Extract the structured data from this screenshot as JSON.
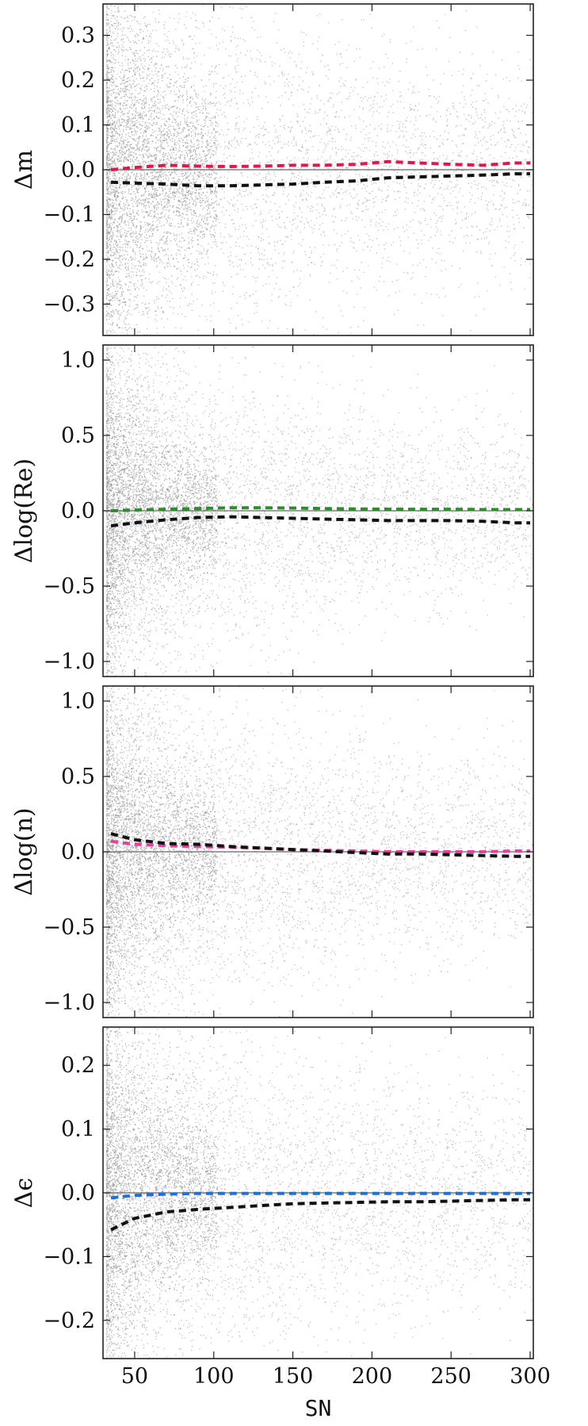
{
  "chart_data": [
    {
      "type": "scatter",
      "ylabel": "Δm",
      "xlim": [
        30,
        302
      ],
      "ylim": [
        -0.37,
        0.37
      ],
      "yticks": [
        {
          "value": 0.3,
          "label": "0.3"
        },
        {
          "value": 0.2,
          "label": "0.2"
        },
        {
          "value": 0.1,
          "label": "0.1"
        },
        {
          "value": 0.0,
          "label": "0.0"
        },
        {
          "value": -0.1,
          "label": "−0.1"
        },
        {
          "value": -0.2,
          "label": "−0.2"
        },
        {
          "value": -0.3,
          "label": "−0.3"
        }
      ],
      "spread": [
        0.35,
        0.09
      ],
      "series": [
        {
          "color": "#e0184a",
          "x": [
            35,
            50,
            70,
            90,
            110,
            130,
            150,
            170,
            190,
            210,
            230,
            250,
            270,
            290,
            300
          ],
          "y": [
            0.0,
            0.005,
            0.01,
            0.008,
            0.007,
            0.008,
            0.01,
            0.01,
            0.012,
            0.018,
            0.015,
            0.012,
            0.01,
            0.015,
            0.015
          ]
        },
        {
          "color": "#111111",
          "x": [
            35,
            50,
            70,
            90,
            110,
            130,
            150,
            170,
            190,
            210,
            230,
            250,
            270,
            290,
            300
          ],
          "y": [
            -0.028,
            -0.03,
            -0.032,
            -0.036,
            -0.036,
            -0.034,
            -0.032,
            -0.028,
            -0.025,
            -0.018,
            -0.016,
            -0.014,
            -0.012,
            -0.009,
            -0.009
          ]
        }
      ]
    },
    {
      "type": "scatter",
      "ylabel": "Δlog(Re)",
      "xlim": [
        30,
        302
      ],
      "ylim": [
        -1.1,
        1.1
      ],
      "yticks": [
        {
          "value": 1.0,
          "label": "1.0"
        },
        {
          "value": 0.5,
          "label": "0.5"
        },
        {
          "value": 0.0,
          "label": "0.0"
        },
        {
          "value": -0.5,
          "label": "−0.5"
        },
        {
          "value": -1.0,
          "label": "−1.0"
        }
      ],
      "spread": [
        0.8,
        0.28
      ],
      "series": [
        {
          "color": "#2e8b2e",
          "x": [
            35,
            50,
            70,
            90,
            110,
            130,
            150,
            170,
            190,
            210,
            230,
            250,
            270,
            290,
            300
          ],
          "y": [
            0.0,
            0.005,
            0.01,
            0.015,
            0.02,
            0.02,
            0.018,
            0.015,
            0.012,
            0.01,
            0.01,
            0.01,
            0.008,
            0.008,
            0.008
          ]
        },
        {
          "color": "#111111",
          "x": [
            35,
            50,
            70,
            90,
            110,
            130,
            150,
            170,
            190,
            210,
            230,
            250,
            270,
            290,
            300
          ],
          "y": [
            -0.1,
            -0.08,
            -0.06,
            -0.045,
            -0.04,
            -0.045,
            -0.05,
            -0.055,
            -0.06,
            -0.065,
            -0.065,
            -0.065,
            -0.07,
            -0.08,
            -0.08
          ]
        }
      ]
    },
    {
      "type": "scatter",
      "ylabel": "Δlog(n)",
      "xlim": [
        30,
        302
      ],
      "ylim": [
        -1.1,
        1.1
      ],
      "yticks": [
        {
          "value": 1.0,
          "label": "1.0"
        },
        {
          "value": 0.5,
          "label": "0.5"
        },
        {
          "value": 0.0,
          "label": "0.0"
        },
        {
          "value": -0.5,
          "label": "−0.5"
        },
        {
          "value": -1.0,
          "label": "−1.0"
        }
      ],
      "spread": [
        0.9,
        0.3
      ],
      "series": [
        {
          "color": "#e8409a",
          "x": [
            35,
            50,
            70,
            90,
            110,
            130,
            150,
            170,
            190,
            210,
            230,
            250,
            270,
            290,
            300
          ],
          "y": [
            0.07,
            0.05,
            0.04,
            0.035,
            0.03,
            0.025,
            0.015,
            0.01,
            0.005,
            0.0,
            0.0,
            0.0,
            0.0,
            0.005,
            0.005
          ]
        },
        {
          "color": "#111111",
          "x": [
            35,
            50,
            70,
            90,
            110,
            130,
            150,
            170,
            190,
            210,
            230,
            250,
            270,
            290,
            300
          ],
          "y": [
            0.12,
            0.08,
            0.055,
            0.05,
            0.035,
            0.025,
            0.015,
            0.005,
            -0.005,
            -0.015,
            -0.015,
            -0.02,
            -0.025,
            -0.03,
            -0.03
          ]
        }
      ]
    },
    {
      "type": "scatter",
      "ylabel": "Δϵ",
      "xlim": [
        30,
        302
      ],
      "ylim": [
        -0.26,
        0.26
      ],
      "yticks": [
        {
          "value": 0.2,
          "label": "0.2"
        },
        {
          "value": 0.1,
          "label": "0.1"
        },
        {
          "value": 0.0,
          "label": "0.0"
        },
        {
          "value": -0.1,
          "label": "−0.1"
        },
        {
          "value": -0.2,
          "label": "−0.2"
        }
      ],
      "xticks": [
        {
          "value": 50,
          "label": "50"
        },
        {
          "value": 100,
          "label": "100"
        },
        {
          "value": 150,
          "label": "150"
        },
        {
          "value": 200,
          "label": "200"
        },
        {
          "value": 250,
          "label": "250"
        },
        {
          "value": 300,
          "label": "300"
        }
      ],
      "xlabel": "SN",
      "spread": [
        0.24,
        0.07
      ],
      "series": [
        {
          "color": "#1e6fe0",
          "x": [
            35,
            50,
            70,
            90,
            110,
            130,
            150,
            170,
            190,
            210,
            230,
            250,
            270,
            290,
            300
          ],
          "y": [
            -0.008,
            -0.004,
            -0.002,
            -0.001,
            -0.001,
            -0.001,
            -0.001,
            -0.001,
            -0.001,
            -0.001,
            -0.001,
            -0.001,
            -0.001,
            -0.001,
            -0.001
          ]
        },
        {
          "color": "#111111",
          "x": [
            35,
            50,
            70,
            90,
            110,
            130,
            150,
            170,
            190,
            210,
            230,
            250,
            270,
            290,
            300
          ],
          "y": [
            -0.058,
            -0.04,
            -0.03,
            -0.026,
            -0.023,
            -0.02,
            -0.017,
            -0.016,
            -0.015,
            -0.014,
            -0.014,
            -0.013,
            -0.012,
            -0.011,
            -0.011
          ]
        }
      ]
    }
  ]
}
